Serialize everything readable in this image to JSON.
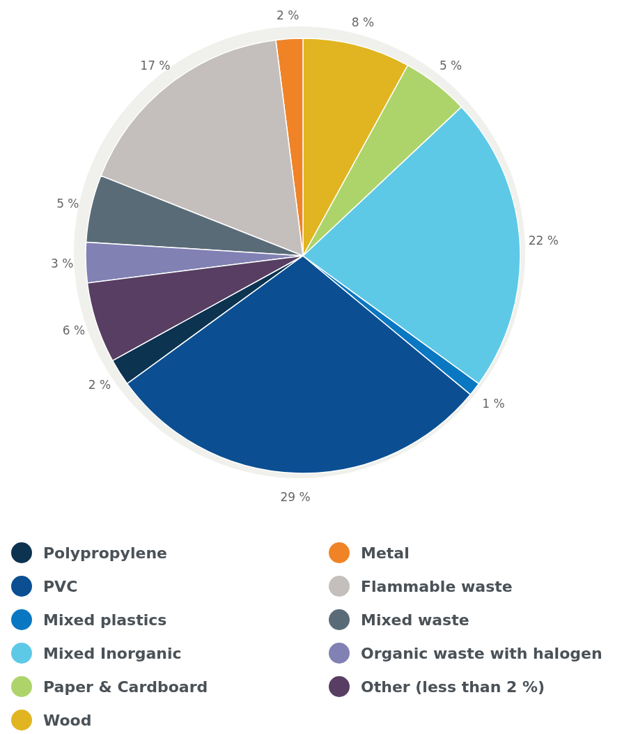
{
  "chart_data": {
    "type": "pie",
    "categories": [
      "Polypropylene",
      "PVC",
      "Mixed plastics",
      "Mixed Inorganic",
      "Paper & Cardboard",
      "Wood",
      "Metal",
      "Flammable waste",
      "Mixed waste",
      "Organic waste with halogen",
      "Other (less than 2 %)"
    ],
    "values": [
      2,
      29,
      1,
      22,
      5,
      8,
      2,
      17,
      5,
      3,
      6
    ],
    "value_labels": [
      "2 %",
      "29 %",
      "1 %",
      "22 %",
      "5 %",
      "8 %",
      "2 %",
      "17 %",
      "5 %",
      "3 %",
      "6 %"
    ],
    "colors": [
      "#0c3350",
      "#0b4f92",
      "#0a77c2",
      "#5ec9e6",
      "#add46a",
      "#e0b521",
      "#f08326",
      "#c4bfbc",
      "#5a6b78",
      "#8181b4",
      "#573e62"
    ],
    "legend": "bottom"
  }
}
